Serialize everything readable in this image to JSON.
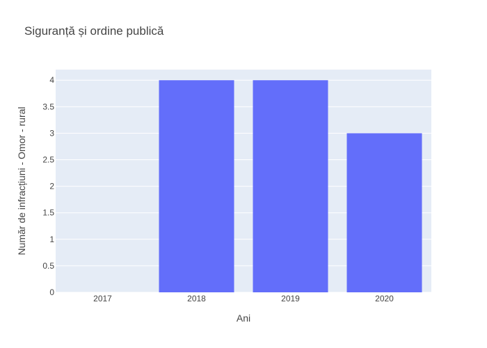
{
  "chart_data": {
    "type": "bar",
    "title": "Siguranță și ordine publică",
    "xlabel": "Ani",
    "ylabel": "Număr de infracțiuni - Omor - rural",
    "categories": [
      "2017",
      "2018",
      "2019",
      "2020"
    ],
    "series": [
      {
        "values": [
          0,
          4,
          4,
          3
        ]
      }
    ],
    "ylim": [
      0,
      4.2
    ],
    "y_ticks": [
      0,
      0.5,
      1,
      1.5,
      2,
      2.5,
      3,
      3.5,
      4
    ],
    "y_tick_labels": [
      "0",
      "0.5",
      "1",
      "1.5",
      "2",
      "2.5",
      "3",
      "3.5",
      "4"
    ],
    "grid": true,
    "colors": {
      "bar": "#636efa",
      "plot_bg": "#e5ecf6",
      "grid": "#ffffff",
      "text": "#444444"
    }
  }
}
